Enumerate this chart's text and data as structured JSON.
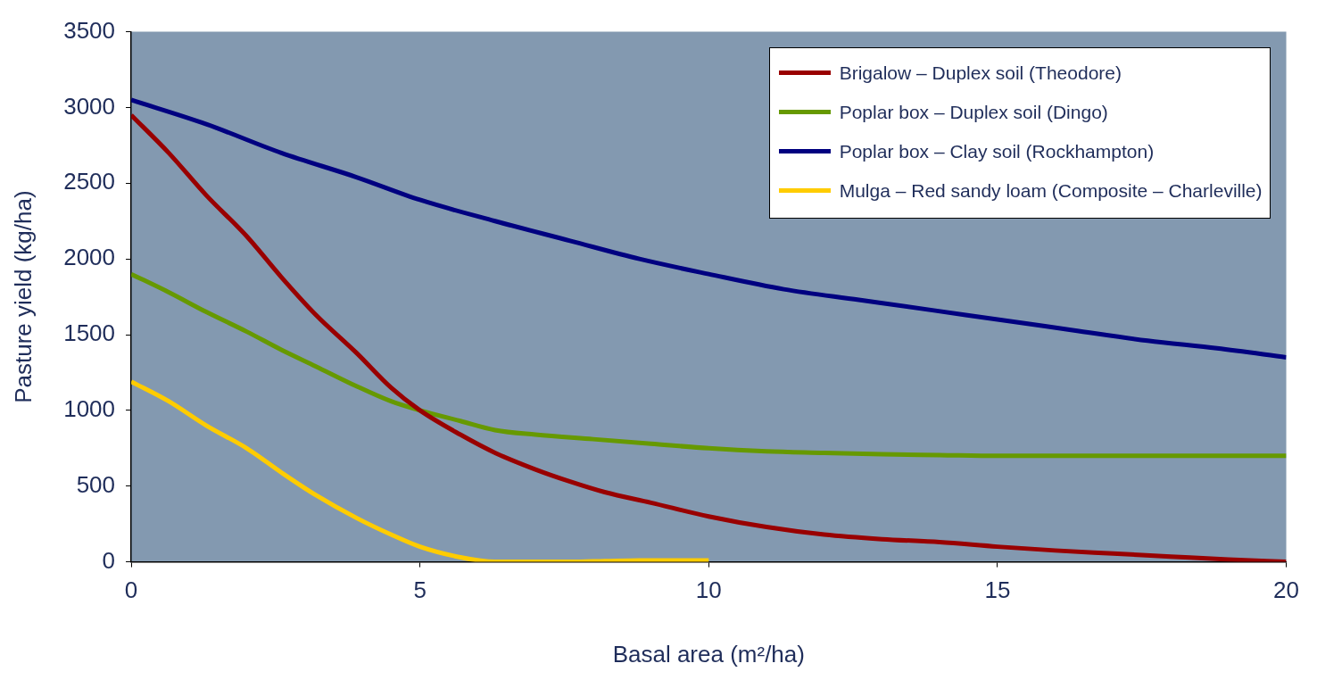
{
  "chart_data": {
    "type": "line",
    "xlabel": "Basal area (m²/ha)",
    "ylabel": "Pasture yield (kg/ha)",
    "xlim": [
      0,
      20
    ],
    "xticks": [
      0,
      5,
      10,
      15,
      20
    ],
    "ylim": [
      0,
      3500
    ],
    "yticks": [
      0,
      500,
      1000,
      1500,
      2000,
      2500,
      3000,
      3500
    ],
    "grid": false,
    "legend": "top right",
    "marker": "none",
    "line_style": "solid",
    "series": [
      {
        "name": "Brigalow – Duplex soil (Theodore)",
        "color": "#990000",
        "x": [
          0,
          0.65,
          1.3,
          2,
          2.6,
          3.2,
          3.9,
          4.5,
          5,
          5.7,
          6.3,
          7,
          7.6,
          8.2,
          9,
          10,
          11,
          12,
          13,
          14,
          15,
          16,
          17,
          18,
          19,
          20
        ],
        "values": [
          2950,
          2700,
          2420,
          2150,
          1880,
          1630,
          1380,
          1150,
          1000,
          840,
          720,
          610,
          530,
          460,
          390,
          300,
          230,
          180,
          150,
          130,
          100,
          75,
          55,
          35,
          15,
          0
        ]
      },
      {
        "name": "Poplar box – Duplex soil (Dingo)",
        "color": "#669900",
        "x": [
          0,
          0.65,
          1.3,
          2,
          2.6,
          3.2,
          3.9,
          4.5,
          5,
          5.7,
          6.3,
          7,
          8,
          9,
          10,
          11,
          12,
          13,
          14,
          15,
          17,
          20
        ],
        "values": [
          1900,
          1780,
          1650,
          1520,
          1400,
          1290,
          1160,
          1060,
          1000,
          930,
          870,
          840,
          810,
          780,
          750,
          730,
          720,
          710,
          705,
          700,
          700,
          700
        ]
      },
      {
        "name": "Poplar box – Clay soil (Rockhampton)",
        "color": "#000080",
        "x": [
          0,
          1.3,
          2.6,
          3.9,
          5,
          6.3,
          7.6,
          8.8,
          10,
          11.3,
          12.6,
          13.9,
          15,
          16.3,
          17.6,
          18.8,
          20
        ],
        "values": [
          3050,
          2890,
          2700,
          2540,
          2390,
          2250,
          2120,
          2000,
          1900,
          1800,
          1730,
          1660,
          1600,
          1530,
          1460,
          1410,
          1350
        ]
      },
      {
        "name": "Mulga – Red sandy loam (Composite – Charleville)",
        "color": "#ffcc00",
        "x": [
          0,
          0.65,
          1.3,
          2,
          2.6,
          3.2,
          3.9,
          4.5,
          5,
          5.7,
          6.3,
          7,
          7.6,
          8.2,
          8.8,
          10
        ],
        "values": [
          1190,
          1060,
          900,
          750,
          590,
          440,
          290,
          180,
          100,
          30,
          0,
          0,
          0,
          5,
          10,
          10
        ]
      }
    ]
  }
}
